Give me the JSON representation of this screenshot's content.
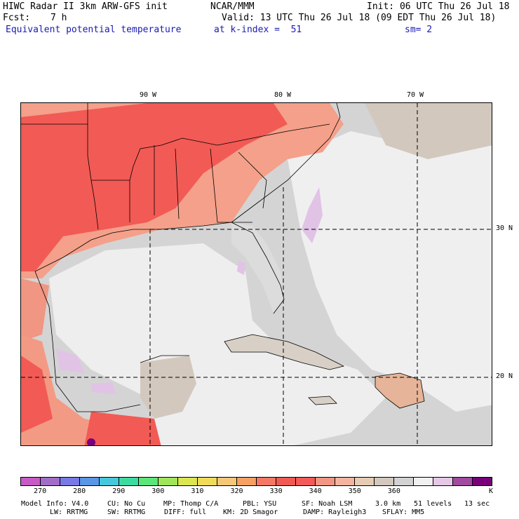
{
  "header": {
    "title": "HIWC Radar II 3km ARW-GFS init",
    "org": "NCAR/MMM",
    "init": "Init: 06 UTC Thu 26 Jul 18",
    "fcst_label": "Fcst:",
    "fcst_value": "7 h",
    "valid": "Valid: 13 UTC Thu 26 Jul 18 (09 EDT Thu 26 Jul 18)",
    "field": "Equivalent potential temperature",
    "level": "at k-index =  51",
    "smooth": "sm= 2"
  },
  "map_labels": {
    "lon": [
      "90 W",
      "80 W",
      "70 W"
    ],
    "lat": [
      "30 N",
      "20 N"
    ]
  },
  "colorbar": {
    "colors": [
      "#c85ac8",
      "#a06ec8",
      "#7878e6",
      "#5a96e6",
      "#46c8dc",
      "#3cdca0",
      "#5ae678",
      "#a0e65a",
      "#dce650",
      "#f0dc5a",
      "#f5c878",
      "#f5a064",
      "#f57864",
      "#f05a50",
      "#f55a5a",
      "#f09682",
      "#f5b4a0",
      "#e6ccb4",
      "#d2c8be",
      "#d2d2d2",
      "#f0f0f0",
      "#e6c8e6",
      "#a04ba0",
      "#780078"
    ],
    "labels": [
      "270",
      "280",
      "290",
      "300",
      "310",
      "320",
      "330",
      "340",
      "350",
      "360"
    ],
    "unit": "K"
  },
  "footer": {
    "line1": [
      "Model Info: V4.0",
      "CU: No Cu",
      "MP: Thomp C/A",
      "PBL: YSU",
      "SF: Noah LSM",
      "3.0 km",
      "51 levels",
      "13 sec"
    ],
    "line2": [
      "LW: RRTMG",
      "SW: RRTMG",
      "DIFF: full",
      "KM: 2D Smagor",
      "DAMP: Rayleigh3",
      "SFLAY: MM5"
    ]
  }
}
